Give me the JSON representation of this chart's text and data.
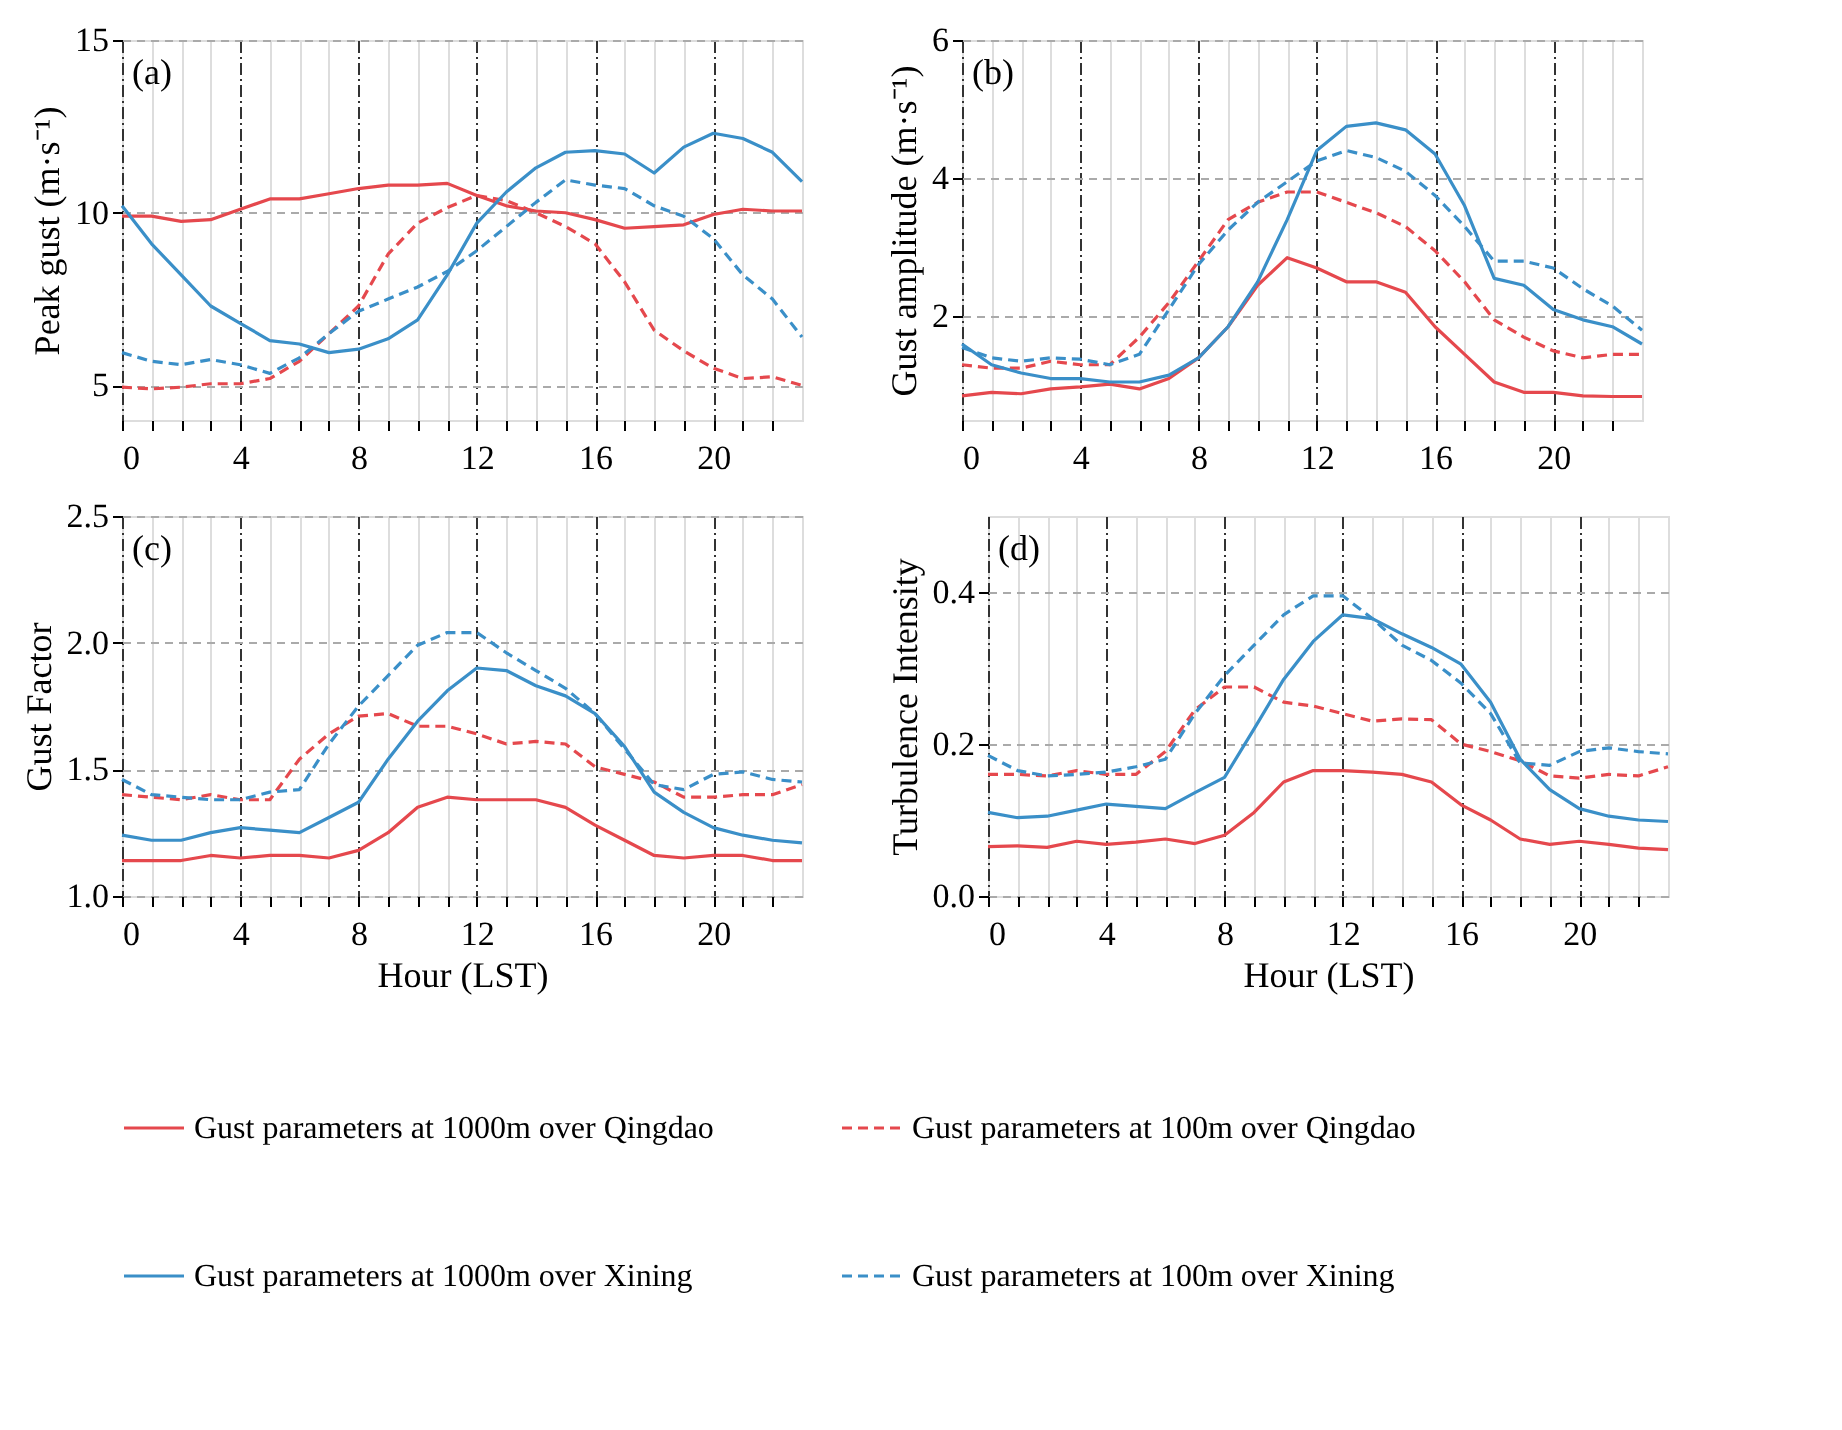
{
  "chart_data": [
    {
      "type": "line",
      "ylabel": "Peak gust (m·s⁻¹)",
      "annotations": [
        "(a)"
      ],
      "x": [
        0,
        1,
        2,
        3,
        4,
        5,
        6,
        7,
        8,
        9,
        10,
        11,
        12,
        13,
        14,
        15,
        16,
        17,
        18,
        19,
        20,
        21,
        22,
        23
      ],
      "xlim": [
        0,
        23
      ],
      "xticks": [
        0,
        {
          "value": 1,
          "label": null
        },
        {
          "value": 2,
          "label": null
        },
        {
          "value": 3,
          "label": null
        },
        4,
        {
          "value": 5,
          "label": null
        },
        {
          "value": 6,
          "label": null
        },
        {
          "value": 7,
          "label": null
        },
        8,
        {
          "value": 9,
          "label": null
        },
        {
          "value": 10,
          "label": null
        },
        {
          "value": 11,
          "label": null
        },
        12,
        {
          "value": 13,
          "label": null
        },
        {
          "value": 14,
          "label": null
        },
        {
          "value": 15,
          "label": null
        },
        16,
        {
          "value": 17,
          "label": null
        },
        {
          "value": 18,
          "label": null
        },
        {
          "value": 19,
          "label": null
        },
        20,
        {
          "value": 21,
          "label": null
        },
        {
          "value": 22,
          "label": null
        }
      ],
      "ylim": [
        4,
        15
      ],
      "yticks": [
        5,
        10,
        15
      ],
      "grid": true,
      "legend": "bottom",
      "series": [
        {
          "name": "Gust parameters at 1000m over Qingdao",
          "color": "#e5484d",
          "line_style": "solid",
          "values": [
            9.9,
            9.9,
            9.75,
            9.8,
            10.1,
            10.4,
            10.4,
            10.55,
            10.7,
            10.8,
            10.8,
            10.85,
            10.5,
            10.2,
            10.05,
            10.0,
            9.8,
            9.55,
            9.6,
            9.65,
            9.95,
            10.1,
            10.05,
            10.05
          ]
        },
        {
          "name": "Gust parameters at 100m over Qingdao",
          "color": "#e5484d",
          "line_style": "dashed",
          "values": [
            4.95,
            4.9,
            4.95,
            5.05,
            5.05,
            5.2,
            5.7,
            6.5,
            7.3,
            8.8,
            9.7,
            10.15,
            10.5,
            10.35,
            10.0,
            9.6,
            9.1,
            8.0,
            6.6,
            6.0,
            5.5,
            5.2,
            5.25,
            5.0
          ]
        },
        {
          "name": "Gust parameters at 1000m over Xining",
          "color": "#3a8fc8",
          "line_style": "solid",
          "values": [
            10.2,
            9.1,
            8.2,
            7.3,
            6.8,
            6.3,
            6.2,
            5.95,
            6.05,
            6.35,
            6.9,
            8.2,
            9.7,
            10.6,
            11.3,
            11.75,
            11.8,
            11.7,
            11.15,
            11.9,
            12.3,
            12.15,
            11.75,
            10.9
          ]
        },
        {
          "name": "Gust parameters at 100m over Xining",
          "color": "#3a8fc8",
          "line_style": "dashed",
          "values": [
            5.95,
            5.7,
            5.6,
            5.75,
            5.6,
            5.35,
            5.8,
            6.5,
            7.15,
            7.5,
            7.85,
            8.3,
            8.9,
            9.6,
            10.3,
            10.95,
            10.8,
            10.7,
            10.2,
            9.9,
            9.25,
            8.2,
            7.5,
            6.4
          ]
        }
      ]
    },
    {
      "type": "line",
      "ylabel": "Gust amplitude (m·s⁻¹)",
      "annotations": [
        "(b)"
      ],
      "x": [
        0,
        1,
        2,
        3,
        4,
        5,
        6,
        7,
        8,
        9,
        10,
        11,
        12,
        13,
        14,
        15,
        16,
        17,
        18,
        19,
        20,
        21,
        22,
        23
      ],
      "xlim": [
        0,
        23
      ],
      "xticks": [
        0,
        {
          "value": 1,
          "label": null
        },
        {
          "value": 2,
          "label": null
        },
        {
          "value": 3,
          "label": null
        },
        4,
        {
          "value": 5,
          "label": null
        },
        {
          "value": 6,
          "label": null
        },
        {
          "value": 7,
          "label": null
        },
        8,
        {
          "value": 9,
          "label": null
        },
        {
          "value": 10,
          "label": null
        },
        {
          "value": 11,
          "label": null
        },
        12,
        {
          "value": 13,
          "label": null
        },
        {
          "value": 14,
          "label": null
        },
        {
          "value": 15,
          "label": null
        },
        16,
        {
          "value": 17,
          "label": null
        },
        {
          "value": 18,
          "label": null
        },
        {
          "value": 19,
          "label": null
        },
        20,
        {
          "value": 21,
          "label": null
        },
        {
          "value": 22,
          "label": null
        }
      ],
      "ylim": [
        0.5,
        6
      ],
      "yticks": [
        2,
        4,
        6
      ],
      "grid": true,
      "legend": "bottom",
      "series": [
        {
          "name": "Gust parameters at 1000m over Qingdao",
          "color": "#e5484d",
          "line_style": "solid",
          "values": [
            0.85,
            0.9,
            0.88,
            0.95,
            0.98,
            1.02,
            0.95,
            1.1,
            1.4,
            1.85,
            2.45,
            2.85,
            2.7,
            2.5,
            2.5,
            2.35,
            1.85,
            1.45,
            1.05,
            0.9,
            0.9,
            0.85,
            0.84,
            0.84
          ]
        },
        {
          "name": "Gust parameters at 100m over Qingdao",
          "color": "#e5484d",
          "line_style": "dashed",
          "values": [
            1.3,
            1.25,
            1.25,
            1.35,
            1.3,
            1.3,
            1.7,
            2.2,
            2.8,
            3.4,
            3.65,
            3.8,
            3.8,
            3.65,
            3.5,
            3.3,
            2.95,
            2.5,
            1.95,
            1.7,
            1.5,
            1.4,
            1.45,
            1.45
          ]
        },
        {
          "name": "Gust parameters at 1000m over Xining",
          "color": "#3a8fc8",
          "line_style": "solid",
          "values": [
            1.6,
            1.3,
            1.18,
            1.1,
            1.1,
            1.05,
            1.05,
            1.15,
            1.4,
            1.85,
            2.5,
            3.4,
            4.4,
            4.75,
            4.8,
            4.7,
            4.35,
            3.6,
            2.55,
            2.45,
            2.1,
            1.95,
            1.85,
            1.6
          ]
        },
        {
          "name": "Gust parameters at 100m over Xining",
          "color": "#3a8fc8",
          "line_style": "dashed",
          "values": [
            1.55,
            1.4,
            1.35,
            1.4,
            1.38,
            1.3,
            1.45,
            2.1,
            2.75,
            3.25,
            3.65,
            3.95,
            4.25,
            4.4,
            4.3,
            4.1,
            3.75,
            3.3,
            2.8,
            2.8,
            2.7,
            2.4,
            2.15,
            1.8
          ]
        }
      ]
    },
    {
      "type": "line",
      "ylabel": "Gust Factor",
      "xlabel": "Hour (LST)",
      "annotations": [
        "(c)"
      ],
      "x": [
        0,
        1,
        2,
        3,
        4,
        5,
        6,
        7,
        8,
        9,
        10,
        11,
        12,
        13,
        14,
        15,
        16,
        17,
        18,
        19,
        20,
        21,
        22,
        23
      ],
      "xlim": [
        0,
        23
      ],
      "xticks": [
        0,
        {
          "value": 1,
          "label": null
        },
        {
          "value": 2,
          "label": null
        },
        {
          "value": 3,
          "label": null
        },
        4,
        {
          "value": 5,
          "label": null
        },
        {
          "value": 6,
          "label": null
        },
        {
          "value": 7,
          "label": null
        },
        8,
        {
          "value": 9,
          "label": null
        },
        {
          "value": 10,
          "label": null
        },
        {
          "value": 11,
          "label": null
        },
        12,
        {
          "value": 13,
          "label": null
        },
        {
          "value": 14,
          "label": null
        },
        {
          "value": 15,
          "label": null
        },
        16,
        {
          "value": 17,
          "label": null
        },
        {
          "value": 18,
          "label": null
        },
        {
          "value": 19,
          "label": null
        },
        20,
        {
          "value": 21,
          "label": null
        },
        {
          "value": 22,
          "label": null
        }
      ],
      "ylim": [
        1.0,
        2.5
      ],
      "yticks": [
        {
          "value": 1.0,
          "label": "1.0"
        },
        1.5,
        {
          "value": 2.0,
          "label": "2.0"
        },
        2.5
      ],
      "grid": true,
      "legend": "bottom",
      "series": [
        {
          "name": "Gust parameters at 1000m over Qingdao",
          "color": "#e5484d",
          "line_style": "solid",
          "values": [
            1.14,
            1.14,
            1.14,
            1.16,
            1.15,
            1.16,
            1.16,
            1.15,
            1.18,
            1.25,
            1.35,
            1.39,
            1.38,
            1.38,
            1.38,
            1.35,
            1.28,
            1.22,
            1.16,
            1.15,
            1.16,
            1.16,
            1.14,
            1.14
          ]
        },
        {
          "name": "Gust parameters at 100m over Qingdao",
          "color": "#e5484d",
          "line_style": "dashed",
          "values": [
            1.4,
            1.39,
            1.38,
            1.4,
            1.38,
            1.38,
            1.54,
            1.64,
            1.71,
            1.72,
            1.67,
            1.67,
            1.64,
            1.6,
            1.61,
            1.6,
            1.51,
            1.48,
            1.45,
            1.39,
            1.39,
            1.4,
            1.4,
            1.44
          ]
        },
        {
          "name": "Gust parameters at 1000m over Xining",
          "color": "#3a8fc8",
          "line_style": "solid",
          "values": [
            1.24,
            1.22,
            1.22,
            1.25,
            1.27,
            1.26,
            1.25,
            1.31,
            1.37,
            1.54,
            1.69,
            1.81,
            1.9,
            1.89,
            1.83,
            1.79,
            1.72,
            1.59,
            1.41,
            1.33,
            1.27,
            1.24,
            1.22,
            1.21
          ]
        },
        {
          "name": "Gust parameters at 100m over Xining",
          "color": "#3a8fc8",
          "line_style": "dashed",
          "values": [
            1.46,
            1.4,
            1.39,
            1.38,
            1.38,
            1.41,
            1.42,
            1.6,
            1.75,
            1.87,
            1.99,
            2.04,
            2.04,
            1.96,
            1.89,
            1.82,
            1.72,
            1.58,
            1.44,
            1.42,
            1.48,
            1.49,
            1.46,
            1.45
          ]
        }
      ]
    },
    {
      "type": "line",
      "ylabel": "Turbulence Intensity",
      "xlabel": "Hour (LST)",
      "annotations": [
        "(d)"
      ],
      "x": [
        0,
        1,
        2,
        3,
        4,
        5,
        6,
        7,
        8,
        9,
        10,
        11,
        12,
        13,
        14,
        15,
        16,
        17,
        18,
        19,
        20,
        21,
        22,
        23
      ],
      "xlim": [
        0,
        23
      ],
      "xticks": [
        0,
        {
          "value": 1,
          "label": null
        },
        {
          "value": 2,
          "label": null
        },
        {
          "value": 3,
          "label": null
        },
        4,
        {
          "value": 5,
          "label": null
        },
        {
          "value": 6,
          "label": null
        },
        {
          "value": 7,
          "label": null
        },
        8,
        {
          "value": 9,
          "label": null
        },
        {
          "value": 10,
          "label": null
        },
        {
          "value": 11,
          "label": null
        },
        12,
        {
          "value": 13,
          "label": null
        },
        {
          "value": 14,
          "label": null
        },
        {
          "value": 15,
          "label": null
        },
        16,
        {
          "value": 17,
          "label": null
        },
        {
          "value": 18,
          "label": null
        },
        {
          "value": 19,
          "label": null
        },
        20,
        {
          "value": 21,
          "label": null
        },
        {
          "value": 22,
          "label": null
        }
      ],
      "ylim": [
        0.0,
        0.5
      ],
      "yticks": [
        {
          "value": 0.0,
          "label": "0.0"
        },
        0.2,
        0.4
      ],
      "grid": true,
      "legend": "bottom",
      "series": [
        {
          "name": "Gust parameters at 1000m over Qingdao",
          "color": "#e5484d",
          "line_style": "solid",
          "values": [
            0.065,
            0.066,
            0.064,
            0.072,
            0.068,
            0.071,
            0.075,
            0.069,
            0.08,
            0.11,
            0.15,
            0.165,
            0.165,
            0.163,
            0.16,
            0.15,
            0.12,
            0.1,
            0.075,
            0.068,
            0.072,
            0.068,
            0.063,
            0.061
          ]
        },
        {
          "name": "Gust parameters at 100m over Qingdao",
          "color": "#e5484d",
          "line_style": "dashed",
          "values": [
            0.16,
            0.16,
            0.158,
            0.165,
            0.16,
            0.16,
            0.19,
            0.245,
            0.275,
            0.275,
            0.255,
            0.25,
            0.24,
            0.23,
            0.233,
            0.232,
            0.2,
            0.19,
            0.178,
            0.158,
            0.155,
            0.16,
            0.158,
            0.17
          ]
        },
        {
          "name": "Gust parameters at 1000m over Xining",
          "color": "#3a8fc8",
          "line_style": "solid",
          "values": [
            0.11,
            0.103,
            0.105,
            0.113,
            0.121,
            0.118,
            0.115,
            0.136,
            0.156,
            0.22,
            0.285,
            0.335,
            0.37,
            0.365,
            0.345,
            0.327,
            0.305,
            0.255,
            0.18,
            0.14,
            0.115,
            0.105,
            0.1,
            0.098
          ]
        },
        {
          "name": "Gust parameters at 100m over Xining",
          "color": "#3a8fc8",
          "line_style": "dashed",
          "values": [
            0.185,
            0.165,
            0.158,
            0.16,
            0.163,
            0.17,
            0.18,
            0.24,
            0.29,
            0.33,
            0.37,
            0.395,
            0.395,
            0.365,
            0.33,
            0.31,
            0.28,
            0.24,
            0.175,
            0.172,
            0.19,
            0.195,
            0.19,
            0.187
          ]
        }
      ]
    }
  ]
}
